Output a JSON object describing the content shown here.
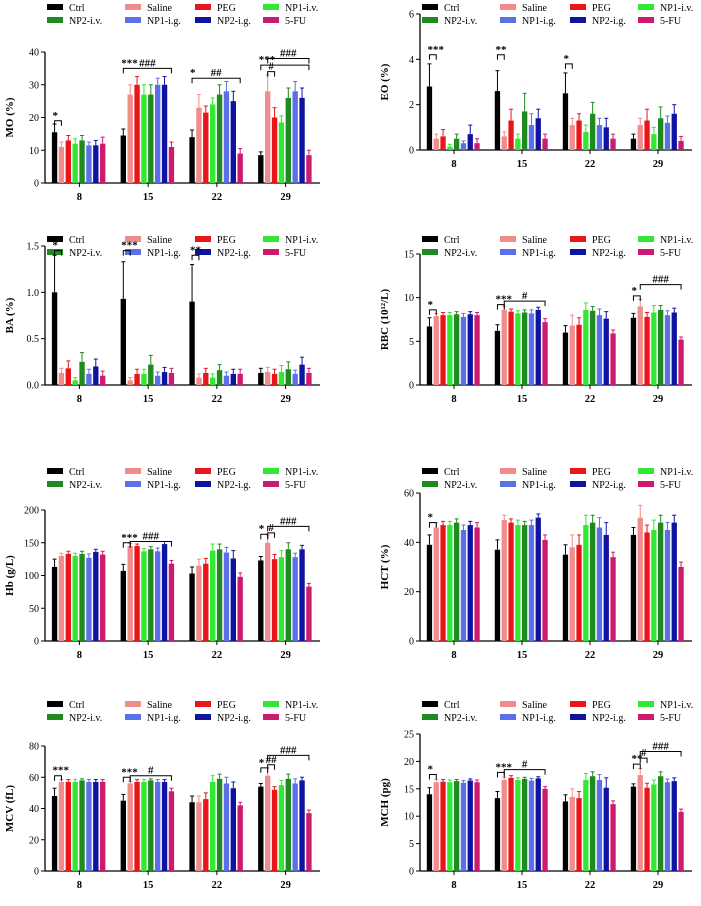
{
  "groups": [
    "Ctrl",
    "Saline",
    "PEG",
    "NP1-i.v.",
    "NP2-i.v.",
    "NP1-i.g.",
    "NP2-i.g.",
    "5-FU"
  ],
  "colors": [
    "#000000",
    "#f08c8c",
    "#e8161b",
    "#33e833",
    "#1f8a1f",
    "#5a6fe8",
    "#0f14a0",
    "#cc1a6e"
  ],
  "chart_data": [
    {
      "type": "bar",
      "ylabel": "MO (%)",
      "ylim": [
        0,
        40
      ],
      "yticks": [
        "0",
        "10",
        "20",
        "30",
        "40"
      ],
      "categories": [
        "8",
        "15",
        "22",
        "29"
      ],
      "series": [
        {
          "name": "Ctrl",
          "values": [
            15.5,
            14.5,
            14,
            8.5
          ],
          "err": [
            2.5,
            2,
            2.2,
            1
          ]
        },
        {
          "name": "Saline",
          "values": [
            11,
            27,
            23,
            28
          ],
          "err": [
            1.5,
            3,
            4,
            5
          ]
        },
        {
          "name": "PEG",
          "values": [
            13,
            30,
            21.5,
            20
          ],
          "err": [
            1.5,
            2.5,
            2,
            3
          ]
        },
        {
          "name": "NP1-i.v.",
          "values": [
            12,
            27,
            24,
            18.5
          ],
          "err": [
            1.5,
            3,
            2,
            2
          ]
        },
        {
          "name": "NP2-i.v.",
          "values": [
            13,
            27,
            27,
            26
          ],
          "err": [
            1.5,
            3,
            3,
            3
          ]
        },
        {
          "name": "NP1-i.g.",
          "values": [
            11.5,
            30,
            28,
            28
          ],
          "err": [
            1,
            2,
            3,
            3
          ]
        },
        {
          "name": "NP2-i.g.",
          "values": [
            11.5,
            30,
            25,
            26
          ],
          "err": [
            1.5,
            2.5,
            3,
            3
          ]
        },
        {
          "name": "5-FU",
          "values": [
            12,
            11,
            9,
            8.5
          ],
          "err": [
            2,
            1.5,
            1.5,
            1.5
          ]
        }
      ],
      "significance": [
        "*",
        "***",
        "###",
        "*",
        "##",
        "***",
        "#",
        "###"
      ]
    },
    {
      "type": "bar",
      "ylabel": "EO (%)",
      "ylim": [
        0,
        6
      ],
      "yticks": [
        "0",
        "2",
        "4",
        "6"
      ],
      "categories": [
        "8",
        "15",
        "22",
        "29"
      ],
      "series": [
        {
          "name": "Ctrl",
          "values": [
            2.8,
            2.6,
            2.5,
            0.5
          ],
          "err": [
            1,
            0.9,
            0.9,
            0.2
          ]
        },
        {
          "name": "Saline",
          "values": [
            0.5,
            0.6,
            1.1,
            1.1
          ],
          "err": [
            0.2,
            0.2,
            0.3,
            0.3
          ]
        },
        {
          "name": "PEG",
          "values": [
            0.6,
            1.3,
            1.3,
            1.3
          ],
          "err": [
            0.3,
            0.5,
            0.3,
            0.5
          ]
        },
        {
          "name": "NP1-i.v.",
          "values": [
            0.15,
            0.5,
            0.8,
            0.7
          ],
          "err": [
            0.1,
            0.2,
            0.3,
            0.3
          ]
        },
        {
          "name": "NP2-i.v.",
          "values": [
            0.5,
            1.7,
            1.6,
            1.4
          ],
          "err": [
            0.2,
            0.8,
            0.5,
            0.5
          ]
        },
        {
          "name": "NP1-i.g.",
          "values": [
            0.3,
            1.1,
            1.1,
            1.2
          ],
          "err": [
            0.1,
            0.5,
            0.3,
            0.3
          ]
        },
        {
          "name": "NP2-i.g.",
          "values": [
            0.7,
            1.4,
            1.0,
            1.6
          ],
          "err": [
            0.4,
            0.4,
            0.4,
            0.4
          ]
        },
        {
          "name": "5-FU",
          "values": [
            0.3,
            0.5,
            0.5,
            0.4
          ],
          "err": [
            0.2,
            0.2,
            0.2,
            0.2
          ]
        }
      ],
      "significance": [
        "***",
        "**",
        "*"
      ]
    },
    {
      "type": "bar",
      "ylabel": "BA (%)",
      "ylim": [
        0,
        1.5
      ],
      "yticks": [
        "0.0",
        "0.5",
        "1.0",
        "1.5"
      ],
      "categories": [
        "8",
        "15",
        "22",
        "29"
      ],
      "series": [
        {
          "name": "Ctrl",
          "values": [
            1.0,
            0.93,
            0.9,
            0.13
          ],
          "err": [
            0.4,
            0.4,
            0.4,
            0.05
          ]
        },
        {
          "name": "Saline",
          "values": [
            0.13,
            0.05,
            0.08,
            0.14
          ],
          "err": [
            0.05,
            0.03,
            0.04,
            0.05
          ]
        },
        {
          "name": "PEG",
          "values": [
            0.18,
            0.12,
            0.13,
            0.12
          ],
          "err": [
            0.08,
            0.05,
            0.05,
            0.05
          ]
        },
        {
          "name": "NP1-i.v.",
          "values": [
            0.05,
            0.12,
            0.08,
            0.14
          ],
          "err": [
            0.03,
            0.05,
            0.04,
            0.07
          ]
        },
        {
          "name": "NP2-i.v.",
          "values": [
            0.25,
            0.22,
            0.16,
            0.17
          ],
          "err": [
            0.1,
            0.1,
            0.06,
            0.08
          ]
        },
        {
          "name": "NP1-i.g.",
          "values": [
            0.12,
            0.1,
            0.1,
            0.12
          ],
          "err": [
            0.05,
            0.04,
            0.04,
            0.04
          ]
        },
        {
          "name": "NP2-i.g.",
          "values": [
            0.2,
            0.14,
            0.12,
            0.22
          ],
          "err": [
            0.08,
            0.05,
            0.05,
            0.08
          ]
        },
        {
          "name": "5-FU",
          "values": [
            0.1,
            0.13,
            0.12,
            0.13
          ],
          "err": [
            0.05,
            0.05,
            0.05,
            0.05
          ]
        }
      ],
      "significance": [
        "*",
        "***",
        "**"
      ]
    },
    {
      "type": "bar",
      "ylabel": "RBC (10¹²/L)",
      "ylim": [
        0,
        15
      ],
      "yticks": [
        "0",
        "5",
        "10",
        "15"
      ],
      "categories": [
        "8",
        "15",
        "22",
        "29"
      ],
      "series": [
        {
          "name": "Ctrl",
          "values": [
            6.7,
            6.2,
            6.0,
            7.7
          ],
          "err": [
            1,
            0.7,
            0.8,
            0.5
          ]
        },
        {
          "name": "Saline",
          "values": [
            7.9,
            8.6,
            6.8,
            9.0
          ],
          "err": [
            0.3,
            0.4,
            1.2,
            0.8
          ]
        },
        {
          "name": "PEG",
          "values": [
            8.0,
            8.4,
            6.9,
            7.8
          ],
          "err": [
            0.3,
            0.3,
            0.8,
            0.5
          ]
        },
        {
          "name": "NP1-i.v.",
          "values": [
            8.0,
            8.2,
            8.6,
            8.3
          ],
          "err": [
            0.3,
            0.3,
            0.8,
            0.8
          ]
        },
        {
          "name": "NP2-i.v.",
          "values": [
            8.1,
            8.3,
            8.5,
            8.6
          ],
          "err": [
            0.3,
            0.3,
            0.5,
            0.5
          ]
        },
        {
          "name": "NP1-i.g.",
          "values": [
            7.8,
            8.2,
            8.0,
            8.0
          ],
          "err": [
            0.4,
            0.4,
            0.7,
            0.5
          ]
        },
        {
          "name": "NP2-i.g.",
          "values": [
            8.1,
            8.6,
            7.6,
            8.3
          ],
          "err": [
            0.3,
            0.3,
            0.8,
            0.5
          ]
        },
        {
          "name": "5-FU",
          "values": [
            8.0,
            7.2,
            5.9,
            5.2
          ],
          "err": [
            0.3,
            0.4,
            0.4,
            0.3
          ]
        }
      ],
      "significance": [
        "*",
        "***",
        "#",
        "*",
        "###"
      ]
    },
    {
      "type": "bar",
      "ylabel": "Hb (g/L)",
      "ylim": [
        0,
        200
      ],
      "yticks": [
        "0",
        "50",
        "100",
        "150",
        "200"
      ],
      "categories": [
        "8",
        "15",
        "22",
        "29"
      ],
      "series": [
        {
          "name": "Ctrl",
          "values": [
            113,
            107,
            103,
            123
          ],
          "err": [
            12,
            10,
            10,
            6
          ]
        },
        {
          "name": "Saline",
          "values": [
            130,
            145,
            115,
            150
          ],
          "err": [
            4,
            4,
            10,
            12
          ]
        },
        {
          "name": "PEG",
          "values": [
            133,
            145,
            118,
            125
          ],
          "err": [
            4,
            3,
            8,
            7
          ]
        },
        {
          "name": "NP1-i.v.",
          "values": [
            130,
            137,
            138,
            128
          ],
          "err": [
            4,
            4,
            10,
            10
          ]
        },
        {
          "name": "NP2-i.v.",
          "values": [
            133,
            140,
            140,
            140
          ],
          "err": [
            4,
            4,
            8,
            10
          ]
        },
        {
          "name": "NP1-i.g.",
          "values": [
            127,
            137,
            135,
            128
          ],
          "err": [
            6,
            5,
            8,
            6
          ]
        },
        {
          "name": "NP2-i.g.",
          "values": [
            136,
            148,
            126,
            140
          ],
          "err": [
            4,
            4,
            12,
            6
          ]
        },
        {
          "name": "5-FU",
          "values": [
            132,
            118,
            98,
            83
          ],
          "err": [
            5,
            5,
            6,
            5
          ]
        }
      ],
      "significance": [
        "***",
        "###",
        "*",
        "#",
        "###"
      ]
    },
    {
      "type": "bar",
      "ylabel": "HCT (%)",
      "ylim": [
        0,
        60
      ],
      "yticks": [
        "0",
        "20",
        "40",
        "60"
      ],
      "categories": [
        "8",
        "15",
        "22",
        "29"
      ],
      "series": [
        {
          "name": "Ctrl",
          "values": [
            39,
            37,
            35,
            43
          ],
          "err": [
            4,
            4,
            4,
            3
          ]
        },
        {
          "name": "Saline",
          "values": [
            46,
            49,
            38,
            50
          ],
          "err": [
            2,
            2,
            5,
            5
          ]
        },
        {
          "name": "PEG",
          "values": [
            47,
            48,
            39,
            44
          ],
          "err": [
            1.5,
            1.5,
            4,
            3
          ]
        },
        {
          "name": "NP1-i.v.",
          "values": [
            47,
            47,
            47,
            45
          ],
          "err": [
            1.5,
            2,
            4,
            4
          ]
        },
        {
          "name": "NP2-i.v.",
          "values": [
            48,
            47,
            48,
            48
          ],
          "err": [
            1.5,
            1.5,
            3,
            3
          ]
        },
        {
          "name": "NP1-i.g.",
          "values": [
            45,
            47,
            46,
            45
          ],
          "err": [
            2,
            2,
            4,
            3
          ]
        },
        {
          "name": "NP2-i.g.",
          "values": [
            47,
            50,
            43,
            48
          ],
          "err": [
            1.5,
            1.5,
            5,
            3
          ]
        },
        {
          "name": "5-FU",
          "values": [
            46,
            41,
            34,
            30
          ],
          "err": [
            2,
            2,
            2,
            2
          ]
        }
      ],
      "significance": [
        "*"
      ]
    },
    {
      "type": "bar",
      "ylabel": "MCV (fL)",
      "ylim": [
        0,
        80
      ],
      "yticks": [
        "0",
        "20",
        "40",
        "60",
        "80"
      ],
      "categories": [
        "8",
        "15",
        "22",
        "29"
      ],
      "series": [
        {
          "name": "Ctrl",
          "values": [
            48,
            45,
            44,
            54
          ],
          "err": [
            5,
            4,
            4,
            2
          ]
        },
        {
          "name": "Saline",
          "values": [
            57,
            56,
            44,
            61
          ],
          "err": [
            1.5,
            1.5,
            4,
            5
          ]
        },
        {
          "name": "PEG",
          "values": [
            57,
            57,
            46,
            52
          ],
          "err": [
            1.5,
            1.5,
            4,
            2
          ]
        },
        {
          "name": "NP1-i.v.",
          "values": [
            57,
            57,
            57,
            55
          ],
          "err": [
            1.5,
            1.5,
            4,
            3
          ]
        },
        {
          "name": "NP2-i.v.",
          "values": [
            58,
            58,
            59,
            59
          ],
          "err": [
            1,
            1,
            3,
            3
          ]
        },
        {
          "name": "NP1-i.g.",
          "values": [
            57,
            57,
            56,
            56
          ],
          "err": [
            1.5,
            1.5,
            4,
            3
          ]
        },
        {
          "name": "NP2-i.g.",
          "values": [
            57,
            57,
            53,
            58
          ],
          "err": [
            1.5,
            1.5,
            4,
            2
          ]
        },
        {
          "name": "5-FU",
          "values": [
            57,
            51,
            42,
            37
          ],
          "err": [
            1.5,
            2,
            2,
            2
          ]
        }
      ],
      "significance": [
        "***",
        "***",
        "#",
        "*",
        "##",
        "###"
      ]
    },
    {
      "type": "bar",
      "ylabel": "MCH (pg)",
      "ylim": [
        0,
        25
      ],
      "yticks": [
        "0",
        "5",
        "10",
        "15",
        "20",
        "25"
      ],
      "categories": [
        "8",
        "15",
        "22",
        "29"
      ],
      "series": [
        {
          "name": "Ctrl",
          "values": [
            14,
            13.3,
            12.7,
            15.4
          ],
          "err": [
            1.2,
            1.2,
            1.2,
            0.5
          ]
        },
        {
          "name": "Saline",
          "values": [
            16.2,
            16.6,
            13.5,
            17.5
          ],
          "err": [
            0.5,
            0.5,
            1.5,
            1.2
          ]
        },
        {
          "name": "PEG",
          "values": [
            16.3,
            17.0,
            13.3,
            15.2
          ],
          "err": [
            0.4,
            0.4,
            1.2,
            0.8
          ]
        },
        {
          "name": "NP1-i.v.",
          "values": [
            16.2,
            16.6,
            16.6,
            15.8
          ],
          "err": [
            0.4,
            0.4,
            1.2,
            0.8
          ]
        },
        {
          "name": "NP2-i.v.",
          "values": [
            16.4,
            16.8,
            17.3,
            17.3
          ],
          "err": [
            0.3,
            0.3,
            0.8,
            0.8
          ]
        },
        {
          "name": "NP1-i.g.",
          "values": [
            16.1,
            16.5,
            16.6,
            16.2
          ],
          "err": [
            0.4,
            0.4,
            1.0,
            0.6
          ]
        },
        {
          "name": "NP2-i.g.",
          "values": [
            16.5,
            16.9,
            15.2,
            16.4
          ],
          "err": [
            0.3,
            0.3,
            1.8,
            0.6
          ]
        },
        {
          "name": "5-FU",
          "values": [
            16.2,
            15.0,
            12.2,
            10.8
          ],
          "err": [
            0.4,
            0.4,
            0.6,
            0.5
          ]
        }
      ],
      "significance": [
        "*",
        "***",
        "#",
        "**",
        "#",
        "###"
      ]
    }
  ]
}
